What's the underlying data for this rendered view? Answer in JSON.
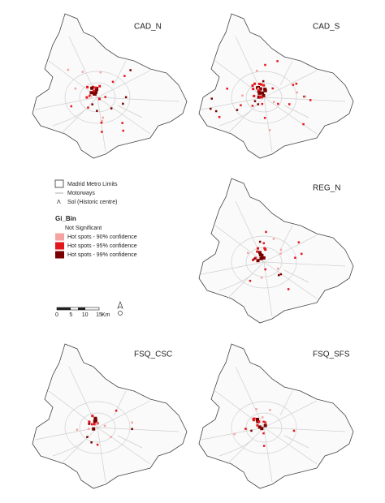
{
  "panels": [
    {
      "label": "CAD_N"
    },
    {
      "label": "CAD_S"
    },
    {
      "label": "REG_N"
    },
    {
      "label": "FSQ_CSC"
    },
    {
      "label": "FSQ_SFS"
    }
  ],
  "legend": {
    "items": [
      "Madrid Metro Limits",
      "Motorways",
      "Sol (Historic centre)"
    ],
    "sol_symbol": "Λ",
    "title": "Gi_Bin",
    "classes": [
      "Not Significant",
      "Hot spots - 90% confidence",
      "Hot spots - 95% confidence",
      "Hot spots - 99% confidence"
    ],
    "class_colors": [
      "#ffffff",
      "#f4a3a3",
      "#e3161c",
      "#7a0000"
    ]
  },
  "scale_bar": {
    "ticks": [
      0,
      5,
      10,
      15
    ],
    "unit": "Km"
  }
}
